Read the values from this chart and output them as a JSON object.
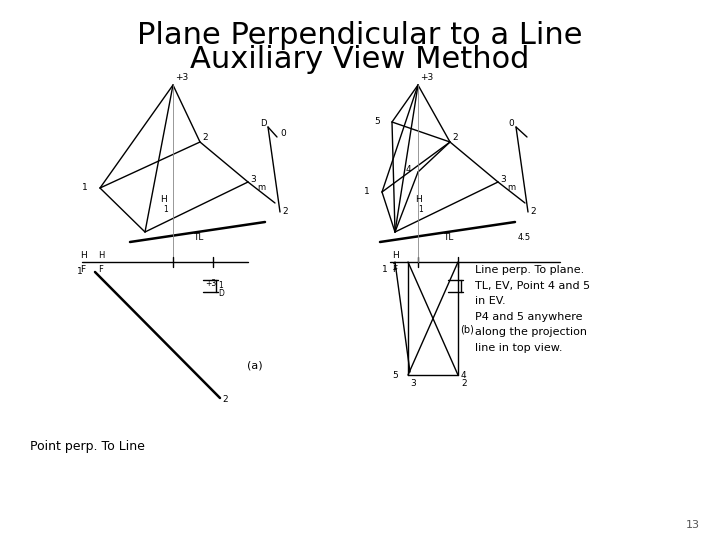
{
  "title_line1": "Plane Perpendicular to a Line",
  "title_line2": "Auxiliary View Method",
  "title_fontsize": 22,
  "title_color": "#000000",
  "background_color": "#ffffff",
  "bottom_left_label": "Point perp. To Line",
  "label_a": "(a)",
  "label_b": "(b)",
  "annotation_text": "Line perp. To plane.\nTL, EV, Point 4 and 5\nin EV.\nP4 and 5 anywhere\nalong the projection\nline in top view.",
  "page_number": "13",
  "lw": 1.0
}
